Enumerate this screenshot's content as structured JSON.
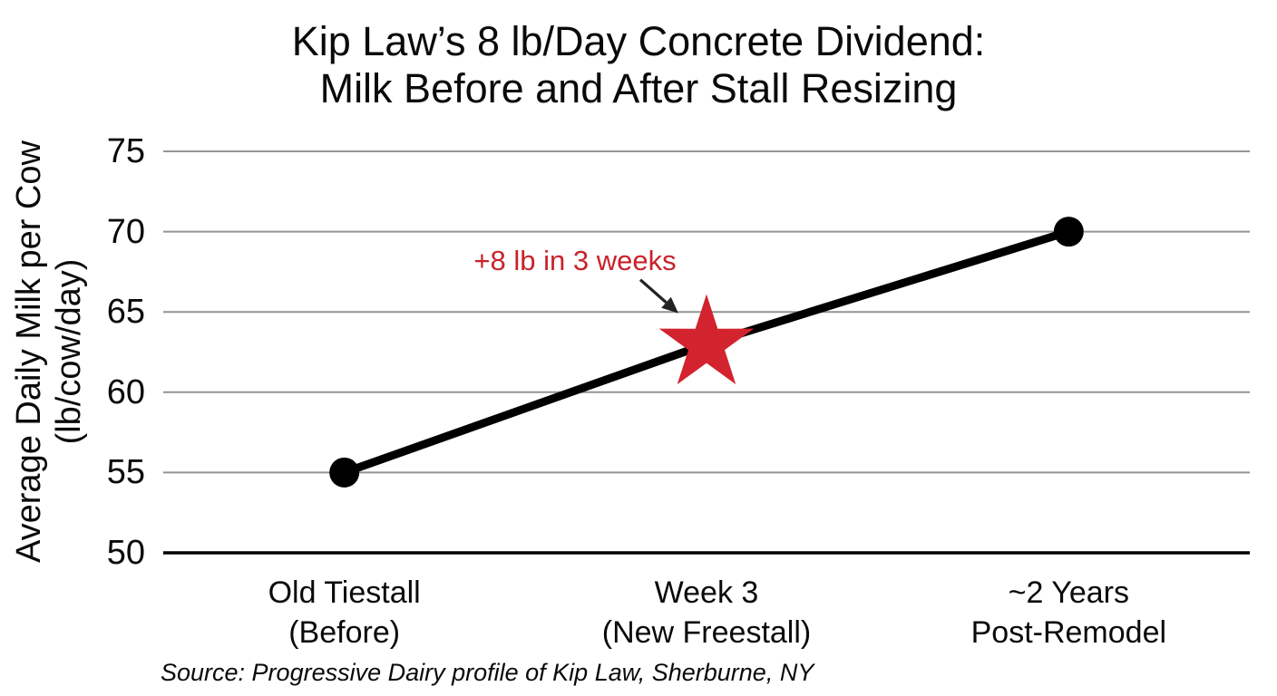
{
  "page": {
    "background": "#ffffff"
  },
  "chart_data": {
    "type": "line",
    "title": "Kip Law’s 8 lb/Day Concrete Dividend:\nMilk Before and After Stall Resizing",
    "ylabel": "Average Daily Milk per Cow\n(lb/cow/day)",
    "xlabel": "",
    "categories": [
      "Old Tiestall\n(Before)",
      "Week 3\n(New Freestall)",
      "~2 Years\nPost-Remodel"
    ],
    "values": [
      55,
      63,
      70
    ],
    "ylim": [
      50,
      75
    ],
    "yticks": [
      50,
      55,
      60,
      65,
      70,
      75
    ],
    "grid": "horizontal",
    "legend": "none",
    "markers": [
      "circle",
      "star",
      "circle"
    ],
    "series_color": "#000000",
    "gridline_color": "#949494",
    "axis_color": "#000000",
    "star_color": "#D2232E",
    "annotation": {
      "text": "+8 lb in 3 weeks",
      "color": "#C9222B",
      "arrow_color": "#222222",
      "target": "Week 3 marker"
    },
    "source": "Source: Progressive Dairy profile of Kip Law, Sherburne, NY"
  }
}
